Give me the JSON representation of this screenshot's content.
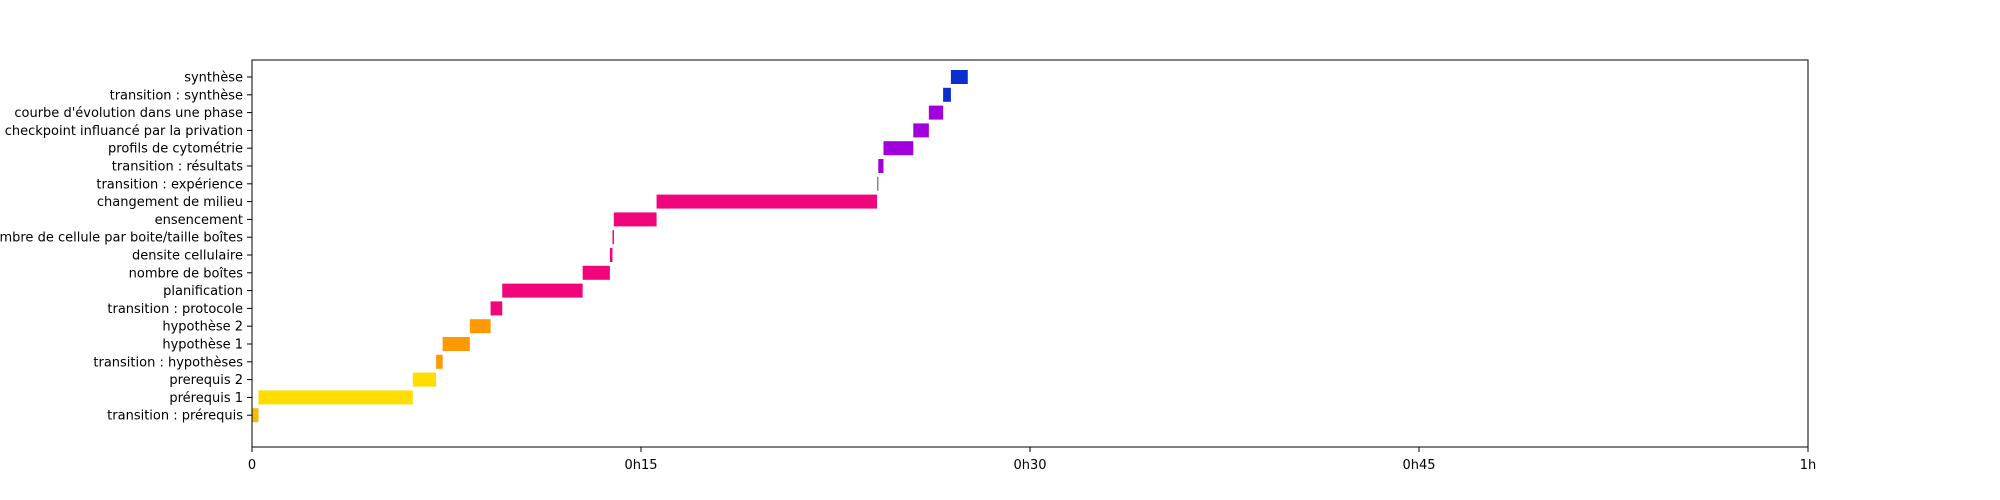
{
  "chart_data": {
    "type": "bar",
    "orientation": "horizontal-gantt",
    "title": "",
    "xlabel": "",
    "ylabel": "",
    "x_unit": "minutes",
    "xlim": [
      0,
      60
    ],
    "x_ticks": [
      {
        "value": 0,
        "label": "0"
      },
      {
        "value": 15,
        "label": "0h15"
      },
      {
        "value": 30,
        "label": "0h30"
      },
      {
        "value": 45,
        "label": "0h45"
      },
      {
        "value": 60,
        "label": "1h"
      }
    ],
    "grid": false,
    "legend": "none",
    "tasks": [
      {
        "label": "transition : prérequis",
        "start": 0.0,
        "end": 0.25,
        "color": "#f2bd0a"
      },
      {
        "label": "prérequis 1",
        "start": 0.25,
        "end": 6.2,
        "color": "#ffdd00"
      },
      {
        "label": "prerequis 2",
        "start": 6.2,
        "end": 7.1,
        "color": "#ffdd00"
      },
      {
        "label": "transition : hypothèses",
        "start": 7.1,
        "end": 7.35,
        "color": "#ff9900"
      },
      {
        "label": "hypothèse 1",
        "start": 7.35,
        "end": 8.4,
        "color": "#ff9900"
      },
      {
        "label": "hypothèse 2",
        "start": 8.4,
        "end": 9.2,
        "color": "#ff9900"
      },
      {
        "label": "transition : protocole",
        "start": 9.2,
        "end": 9.65,
        "color": "#f0067a"
      },
      {
        "label": "planification",
        "start": 9.65,
        "end": 12.75,
        "color": "#f0067a"
      },
      {
        "label": "nombre de boîtes",
        "start": 12.75,
        "end": 13.8,
        "color": "#f0067a"
      },
      {
        "label": "densite cellulaire",
        "start": 13.8,
        "end": 13.9,
        "color": "#f0067a"
      },
      {
        "label": "nombre de cellule par boite/taille boîtes",
        "start": 13.9,
        "end": 13.95,
        "color": "#f0067a"
      },
      {
        "label": "ensencement",
        "start": 13.95,
        "end": 15.6,
        "color": "#f0067a"
      },
      {
        "label": "changement de milieu",
        "start": 15.6,
        "end": 24.1,
        "color": "#f0067a"
      },
      {
        "label": "transition : expérience",
        "start": 24.1,
        "end": 24.15,
        "color": "#888888"
      },
      {
        "label": "transition : résultats",
        "start": 24.15,
        "end": 24.35,
        "color": "#a100dd"
      },
      {
        "label": "profils de cytométrie",
        "start": 24.35,
        "end": 25.5,
        "color": "#a100dd"
      },
      {
        "label": "checkpoint influancé par la privation",
        "start": 25.5,
        "end": 26.1,
        "color": "#a100dd"
      },
      {
        "label": "courbe d'évolution dans une phase",
        "start": 26.1,
        "end": 26.65,
        "color": "#a100dd"
      },
      {
        "label": "transition : synthèse",
        "start": 26.65,
        "end": 26.95,
        "color": "#0a2fcc"
      },
      {
        "label": "synthèse",
        "start": 26.95,
        "end": 27.6,
        "color": "#0a2fcc"
      }
    ]
  }
}
